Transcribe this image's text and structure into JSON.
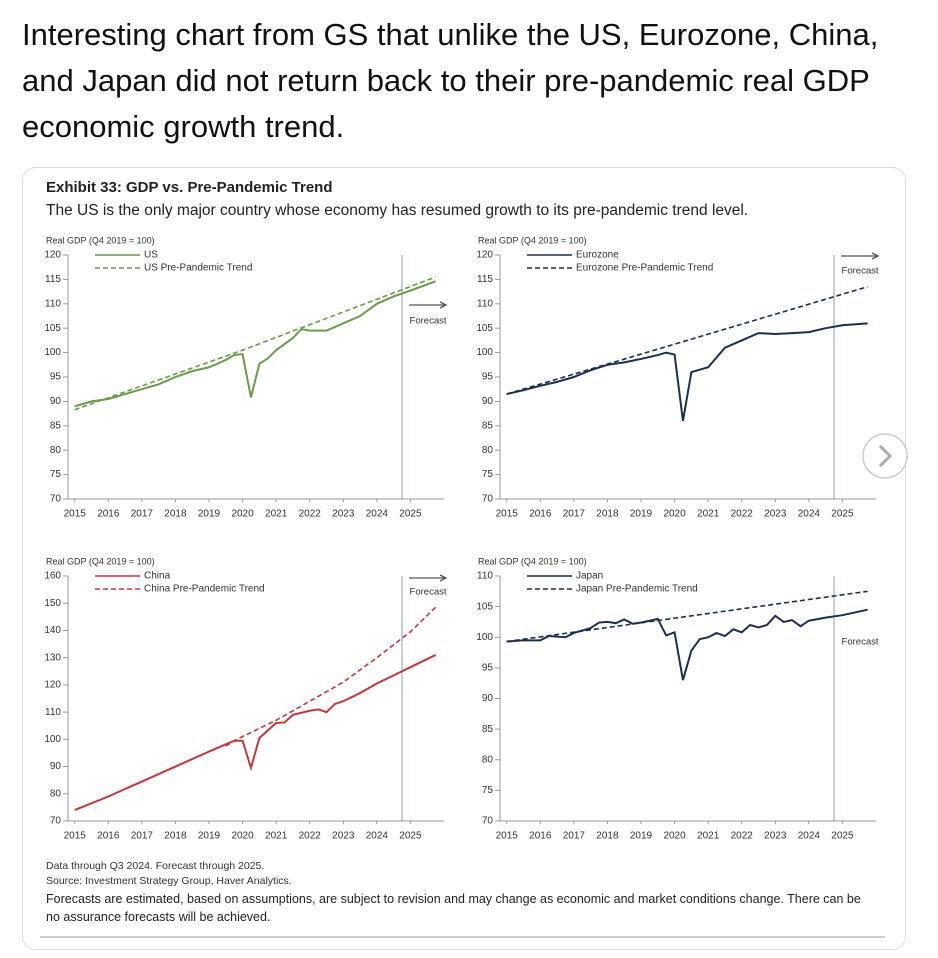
{
  "post_text": "Interesting chart from GS that unlike the US, Eurozone, China, and Japan did not return back to their pre-pandemic real GDP economic growth trend.",
  "exhibit": {
    "title": "Exhibit 33: GDP vs. Pre-Pandemic Trend",
    "subtitle": "The US is the only major country whose economy has resumed growth to its pre-pandemic trend level.",
    "notes": [
      "Data through Q3 2024. Forecast through 2025.",
      "Source: Investment Strategy Group, Haver Analytics."
    ],
    "disclaimer": "Forecasts are estimated, based on assumptions, are subject to revision and may change as economic and market conditions change. There can be no assurance forecasts will be achieved."
  },
  "chart_data": [
    {
      "type": "line",
      "y_label": "Real GDP (Q4 2019 = 100)",
      "forecast_label": "Forecast",
      "forecast_start": 2024.75,
      "xlim": [
        2014.8,
        2026
      ],
      "xticks": [
        2015,
        2016,
        2017,
        2018,
        2019,
        2020,
        2021,
        2022,
        2023,
        2024,
        2025
      ],
      "ylim": [
        70,
        120
      ],
      "yticks": [
        70,
        75,
        80,
        85,
        90,
        95,
        100,
        105,
        110,
        115,
        120
      ],
      "series": [
        {
          "name": "US",
          "color": "#6b9a4a",
          "dashed": false,
          "x": [
            2015,
            2015.5,
            2016,
            2016.5,
            2017,
            2017.5,
            2018,
            2018.5,
            2019,
            2019.5,
            2019.75,
            2020,
            2020.25,
            2020.5,
            2020.75,
            2021,
            2021.5,
            2021.75,
            2022,
            2022.5,
            2023,
            2023.5,
            2024,
            2024.5,
            2025,
            2025.75
          ],
          "values": [
            89,
            90,
            90.5,
            91.5,
            92.5,
            93.5,
            95,
            96.2,
            97,
            98.5,
            99.5,
            99.7,
            90.8,
            97.7,
            98.8,
            100.5,
            103,
            104.8,
            104.5,
            104.5,
            106,
            107.5,
            110,
            111.5,
            112.7,
            114.6
          ]
        },
        {
          "name": "US Pre-Pandemic Trend",
          "color": "#6b9a4a",
          "dashed": true,
          "x": [
            2015,
            2020,
            2025.75
          ],
          "values": [
            88.3,
            100.5,
            115.5
          ]
        }
      ]
    },
    {
      "type": "line",
      "y_label": "Real GDP (Q4 2019 = 100)",
      "forecast_label": "Forecast",
      "forecast_start": 2024.75,
      "xlim": [
        2014.8,
        2026
      ],
      "xticks": [
        2015,
        2016,
        2017,
        2018,
        2019,
        2020,
        2021,
        2022,
        2023,
        2024,
        2025
      ],
      "ylim": [
        70,
        120
      ],
      "yticks": [
        70,
        75,
        80,
        85,
        90,
        95,
        100,
        105,
        110,
        115,
        120
      ],
      "series": [
        {
          "name": "Eurozone",
          "color": "#1c2f4f",
          "dashed": false,
          "x": [
            2015,
            2015.5,
            2016,
            2016.5,
            2017,
            2017.5,
            2018,
            2018.5,
            2019,
            2019.5,
            2019.75,
            2020,
            2020.25,
            2020.5,
            2020.75,
            2021,
            2021.5,
            2022,
            2022.5,
            2023,
            2023.5,
            2024,
            2024.5,
            2025,
            2025.75
          ],
          "values": [
            91.5,
            92.3,
            93.2,
            94,
            95,
            96.4,
            97.5,
            98,
            98.7,
            99.5,
            100,
            99.6,
            86,
            96,
            96.5,
            97,
            101,
            102.5,
            104,
            103.8,
            104,
            104.2,
            105,
            105.6,
            106
          ]
        },
        {
          "name": "Eurozone Pre-Pandemic Trend",
          "color": "#1c2f4f",
          "dashed": true,
          "x": [
            2015,
            2025.75
          ],
          "values": [
            91.5,
            113.5
          ]
        }
      ]
    },
    {
      "type": "line",
      "y_label": "Real GDP (Q4 2019 = 100)",
      "forecast_label": "Forecast",
      "forecast_start": 2024.75,
      "xlim": [
        2014.8,
        2026
      ],
      "xticks": [
        2015,
        2016,
        2017,
        2018,
        2019,
        2020,
        2021,
        2022,
        2023,
        2024,
        2025
      ],
      "ylim": [
        70,
        160
      ],
      "yticks": [
        70,
        80,
        90,
        100,
        110,
        120,
        130,
        140,
        150,
        160
      ],
      "series": [
        {
          "name": "China",
          "color": "#c0393b",
          "dashed": false,
          "x": [
            2015,
            2016,
            2017,
            2018,
            2019,
            2019.75,
            2020,
            2020.25,
            2020.5,
            2021,
            2021.25,
            2021.5,
            2022,
            2022.25,
            2022.5,
            2022.75,
            2023,
            2023.5,
            2024,
            2024.5,
            2025,
            2025.75
          ],
          "values": [
            74,
            79,
            84.5,
            90,
            95.5,
            99.5,
            99.5,
            89.5,
            100.5,
            106,
            106.2,
            109,
            110.5,
            111,
            110,
            113,
            114,
            117,
            120.5,
            123.5,
            126.5,
            131
          ]
        },
        {
          "name": "China Pre-Pandemic Trend",
          "color": "#c0393b",
          "dashed": true,
          "x": [
            2019.5,
            2019.75,
            2021,
            2022,
            2023,
            2024,
            2025,
            2025.75
          ],
          "values": [
            97.5,
            99.5,
            107,
            114,
            121,
            130,
            139.5,
            148.5
          ]
        }
      ]
    },
    {
      "type": "line",
      "y_label": "Real GDP (Q4 2019 = 100)",
      "forecast_label": "Forecast",
      "forecast_start": 2024.75,
      "xlim": [
        2014.8,
        2026
      ],
      "xticks": [
        2015,
        2016,
        2017,
        2018,
        2019,
        2020,
        2021,
        2022,
        2023,
        2024,
        2025
      ],
      "ylim": [
        70,
        110
      ],
      "yticks": [
        70,
        75,
        80,
        85,
        90,
        95,
        100,
        105,
        110
      ],
      "series": [
        {
          "name": "Japan",
          "color": "#1c2f4f",
          "dashed": false,
          "x": [
            2015,
            2015.5,
            2016,
            2016.25,
            2016.75,
            2017,
            2017.5,
            2017.75,
            2018,
            2018.25,
            2018.5,
            2018.75,
            2019,
            2019.5,
            2019.75,
            2020,
            2020.25,
            2020.5,
            2020.75,
            2021,
            2021.25,
            2021.5,
            2021.75,
            2022,
            2022.25,
            2022.5,
            2022.75,
            2023,
            2023.25,
            2023.5,
            2023.75,
            2024,
            2024.5,
            2025,
            2025.75
          ],
          "values": [
            99.3,
            99.5,
            99.5,
            100.2,
            100,
            100.7,
            101.5,
            102.4,
            102.5,
            102.3,
            102.9,
            102.2,
            102.4,
            103,
            100.3,
            100.8,
            93,
            97.8,
            99.7,
            100,
            100.7,
            100.2,
            101.3,
            100.8,
            102,
            101.6,
            102,
            103.5,
            102.5,
            102.8,
            101.8,
            102.7,
            103.2,
            103.6,
            104.5
          ]
        },
        {
          "name": "Japan Pre-Pandemic Trend",
          "color": "#1c2f4f",
          "dashed": true,
          "x": [
            2015,
            2025.75
          ],
          "values": [
            99.3,
            107.5
          ]
        }
      ]
    }
  ]
}
